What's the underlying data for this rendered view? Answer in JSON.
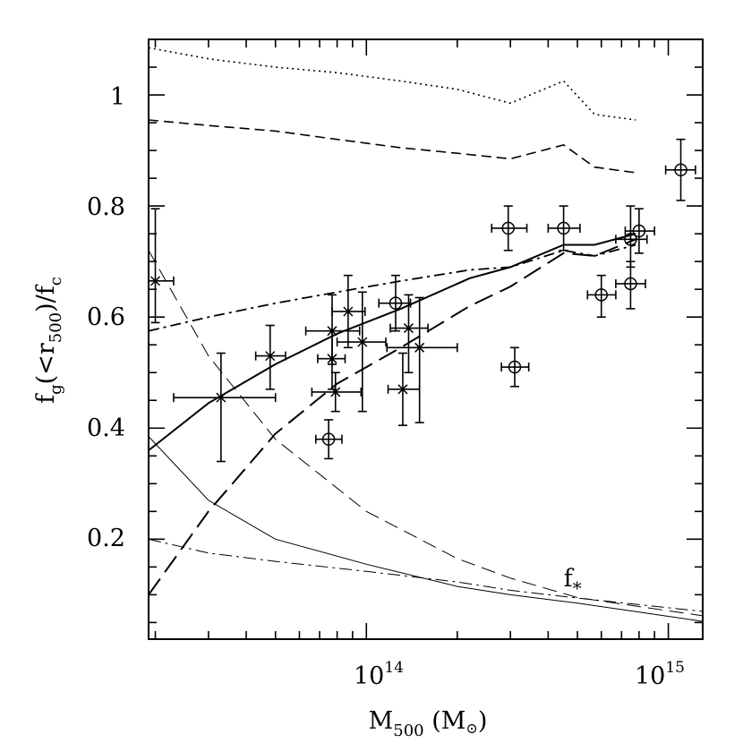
{
  "chart_data": {
    "type": "scatter",
    "xscale": "log",
    "xlim": [
      19000000000000.0,
      1300000000000000.0
    ],
    "ylim": [
      0.02,
      1.1
    ],
    "xlabel": {
      "main": "M",
      "sub": "500",
      "rest": " (M",
      "sun": "⊙",
      "close": ")"
    },
    "ylabel": {
      "f1": "f",
      "g": "g",
      "open": "(<r",
      "sub500": "500",
      "mid": ")/f",
      "c": "c"
    },
    "xticks": [
      {
        "value": 100000000000000.0,
        "base": "10",
        "exp": "14"
      },
      {
        "value": 1000000000000000.0,
        "base": "10",
        "exp": "15"
      }
    ],
    "yticks": [
      {
        "value": 0.2,
        "label": "0.2"
      },
      {
        "value": 0.4,
        "label": "0.4"
      },
      {
        "value": 0.6,
        "label": "0.6"
      },
      {
        "value": 0.8,
        "label": "0.8"
      },
      {
        "value": 1.0,
        "label": "1"
      }
    ],
    "annotation": {
      "text": "f",
      "sub": "*",
      "x": 450000000000000.0,
      "y": 0.115
    },
    "series": [
      {
        "name": "dotted-upper",
        "style": "dotted",
        "width": 1.6,
        "x": [
          19000000000000.0,
          30000000000000.0,
          50000000000000.0,
          80000000000000.0,
          130000000000000.0,
          200000000000000.0,
          300000000000000.0,
          450000000000000.0,
          570000000000000.0,
          780000000000000.0
        ],
        "y": [
          1.085,
          1.065,
          1.05,
          1.04,
          1.025,
          1.01,
          0.985,
          1.025,
          0.965,
          0.955
        ]
      },
      {
        "name": "dashed-upper",
        "style": "dashed",
        "width": 1.6,
        "x": [
          19000000000000.0,
          30000000000000.0,
          50000000000000.0,
          80000000000000.0,
          130000000000000.0,
          200000000000000.0,
          300000000000000.0,
          450000000000000.0,
          570000000000000.0,
          780000000000000.0
        ],
        "y": [
          0.955,
          0.945,
          0.935,
          0.92,
          0.905,
          0.895,
          0.885,
          0.91,
          0.87,
          0.86
        ]
      },
      {
        "name": "solid-thick",
        "style": "solid",
        "width": 2,
        "x": [
          19000000000000.0,
          30000000000000.0,
          50000000000000.0,
          80000000000000.0,
          130000000000000.0,
          220000000000000.0,
          300000000000000.0,
          450000000000000.0,
          570000000000000.0,
          780000000000000.0
        ],
        "y": [
          0.36,
          0.445,
          0.515,
          0.57,
          0.615,
          0.67,
          0.69,
          0.73,
          0.73,
          0.75
        ]
      },
      {
        "name": "dashdot-thick",
        "style": "dashdot",
        "width": 1.8,
        "x": [
          19000000000000.0,
          30000000000000.0,
          50000000000000.0,
          80000000000000.0,
          130000000000000.0,
          220000000000000.0,
          300000000000000.0,
          450000000000000.0,
          570000000000000.0,
          780000000000000.0
        ],
        "y": [
          0.575,
          0.6,
          0.625,
          0.645,
          0.665,
          0.685,
          0.69,
          0.72,
          0.71,
          0.73
        ]
      },
      {
        "name": "longdash-thick",
        "style": "longdash",
        "width": 2,
        "x": [
          19000000000000.0,
          30000000000000.0,
          50000000000000.0,
          80000000000000.0,
          130000000000000.0,
          220000000000000.0,
          300000000000000.0,
          450000000000000.0,
          570000000000000.0,
          780000000000000.0
        ],
        "y": [
          0.1,
          0.25,
          0.39,
          0.48,
          0.545,
          0.62,
          0.655,
          0.715,
          0.71,
          0.74
        ]
      },
      {
        "name": "dashed-thin-falling",
        "style": "dashed-thin",
        "width": 1,
        "x": [
          19000000000000.0,
          30000000000000.0,
          50000000000000.0,
          100000000000000.0,
          200000000000000.0,
          300000000000000.0,
          500000000000000.0,
          1300000000000000.0
        ],
        "y": [
          0.72,
          0.53,
          0.38,
          0.25,
          0.165,
          0.13,
          0.095,
          0.062
        ]
      },
      {
        "name": "solid-thin-falling",
        "style": "solid-thin",
        "width": 1,
        "x": [
          19000000000000.0,
          30000000000000.0,
          50000000000000.0,
          100000000000000.0,
          200000000000000.0,
          300000000000000.0,
          500000000000000.0,
          1300000000000000.0
        ],
        "y": [
          0.385,
          0.27,
          0.2,
          0.155,
          0.115,
          0.1,
          0.085,
          0.052
        ]
      },
      {
        "name": "dashdot-thin-falling",
        "style": "dashdot-thin",
        "width": 1,
        "x": [
          19000000000000.0,
          30000000000000.0,
          50000000000000.0,
          100000000000000.0,
          200000000000000.0,
          300000000000000.0,
          500000000000000.0,
          1300000000000000.0
        ],
        "y": [
          0.2,
          0.175,
          0.16,
          0.142,
          0.123,
          0.108,
          0.094,
          0.07
        ]
      }
    ],
    "points_circle": [
      {
        "x": 295000000000000.0,
        "y": 0.76,
        "xl": 260000000000000.0,
        "xh": 340000000000000.0,
        "yl": 0.72,
        "yh": 0.8
      },
      {
        "x": 450000000000000.0,
        "y": 0.76,
        "xl": 400000000000000.0,
        "xh": 510000000000000.0,
        "yl": 0.72,
        "yh": 0.8
      },
      {
        "x": 750000000000000.0,
        "y": 0.74,
        "xl": 670000000000000.0,
        "xh": 850000000000000.0,
        "yl": 0.69,
        "yh": 0.8
      },
      {
        "x": 800000000000000.0,
        "y": 0.755,
        "xl": 720000000000000.0,
        "xh": 900000000000000.0,
        "yl": 0.715,
        "yh": 0.795
      },
      {
        "x": 600000000000000.0,
        "y": 0.64,
        "xl": 540000000000000.0,
        "xh": 670000000000000.0,
        "yl": 0.6,
        "yh": 0.675
      },
      {
        "x": 750000000000000.0,
        "y": 0.66,
        "xl": 670000000000000.0,
        "xh": 840000000000000.0,
        "yl": 0.615,
        "yh": 0.7
      },
      {
        "x": 1100000000000000.0,
        "y": 0.865,
        "xl": 980000000000000.0,
        "xh": 1230000000000000.0,
        "yl": 0.81,
        "yh": 0.92
      },
      {
        "x": 310000000000000.0,
        "y": 0.51,
        "xl": 280000000000000.0,
        "xh": 345000000000000.0,
        "yl": 0.475,
        "yh": 0.545
      },
      {
        "x": 125000000000000.0,
        "y": 0.625,
        "xl": 110000000000000.0,
        "xh": 140000000000000.0,
        "yl": 0.575,
        "yh": 0.675
      },
      {
        "x": 75000000000000.0,
        "y": 0.38,
        "xl": 68000000000000.0,
        "xh": 83000000000000.0,
        "yl": 0.345,
        "yh": 0.415
      }
    ],
    "points_cross": [
      {
        "x": 20000000000000.0,
        "y": 0.665,
        "xl": 19000000000000.0,
        "xh": 23000000000000.0,
        "yl": 0.59,
        "yh": 0.795
      },
      {
        "x": 33000000000000.0,
        "y": 0.455,
        "xl": 23000000000000.0,
        "xh": 50000000000000.0,
        "yl": 0.34,
        "yh": 0.535
      },
      {
        "x": 48000000000000.0,
        "y": 0.53,
        "xl": 43000000000000.0,
        "xh": 54000000000000.0,
        "yl": 0.47,
        "yh": 0.585
      },
      {
        "x": 77000000000000.0,
        "y": 0.575,
        "xl": 63000000000000.0,
        "xh": 95000000000000.0,
        "yl": 0.515,
        "yh": 0.64
      },
      {
        "x": 87000000000000.0,
        "y": 0.61,
        "xl": 77000000000000.0,
        "xh": 99000000000000.0,
        "yl": 0.545,
        "yh": 0.675
      },
      {
        "x": 77000000000000.0,
        "y": 0.525,
        "xl": 69000000000000.0,
        "xh": 85000000000000.0,
        "yl": 0.47,
        "yh": 0.575
      },
      {
        "x": 79000000000000.0,
        "y": 0.465,
        "xl": 66000000000000.0,
        "xh": 96000000000000.0,
        "yl": 0.43,
        "yh": 0.5
      },
      {
        "x": 97000000000000.0,
        "y": 0.555,
        "xl": 80000000000000.0,
        "xh": 116000000000000.0,
        "yl": 0.43,
        "yh": 0.645
      },
      {
        "x": 132000000000000.0,
        "y": 0.47,
        "xl": 118000000000000.0,
        "xh": 150000000000000.0,
        "yl": 0.405,
        "yh": 0.535
      },
      {
        "x": 138000000000000.0,
        "y": 0.58,
        "xl": 120000000000000.0,
        "xh": 160000000000000.0,
        "yl": 0.5,
        "yh": 0.64
      },
      {
        "x": 150000000000000.0,
        "y": 0.545,
        "xl": 117000000000000.0,
        "xh": 200000000000000.0,
        "yl": 0.41,
        "yh": 0.635
      }
    ]
  }
}
